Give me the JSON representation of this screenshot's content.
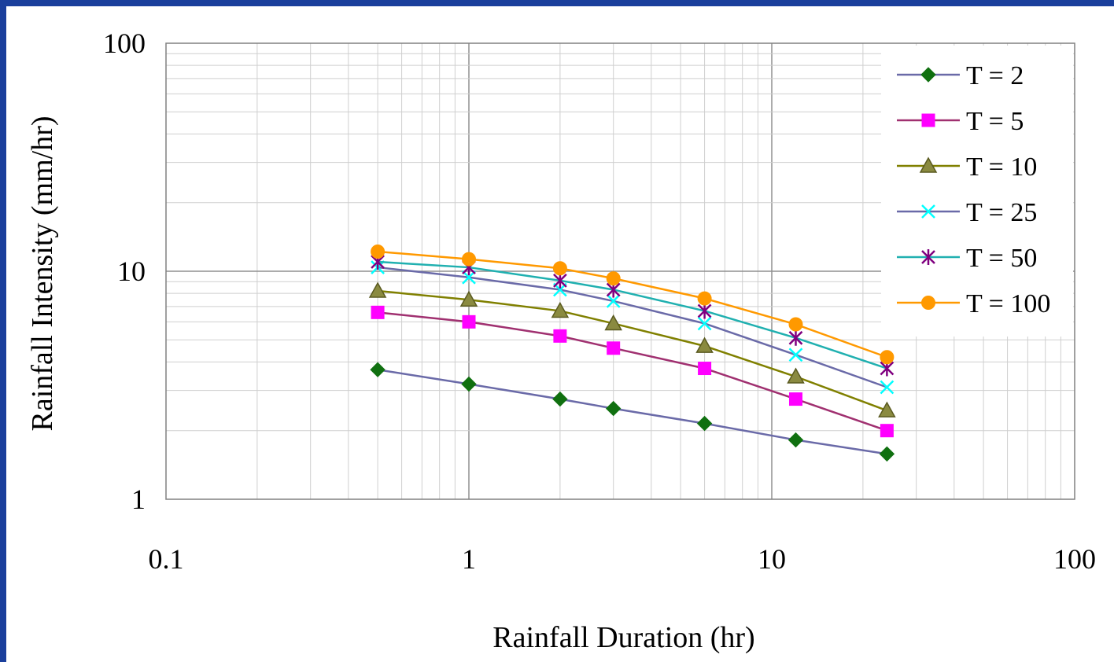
{
  "chart_data": {
    "type": "line",
    "title": "",
    "xlabel": "Rainfall Duration (hr)",
    "ylabel": "Rainfall Intensity (mm/hr)",
    "x_scale": "log",
    "y_scale": "log",
    "xlim": [
      0.1,
      100
    ],
    "ylim": [
      1,
      100
    ],
    "x_ticks": [
      "0.1",
      "1",
      "10",
      "100"
    ],
    "y_ticks": [
      "1",
      "10",
      "100"
    ],
    "grid": true,
    "legend_position": "top-right",
    "x": [
      0.5,
      1,
      2,
      3,
      6,
      12,
      24
    ],
    "series": [
      {
        "name": "T = 2",
        "line_color": "#6a6aa8",
        "marker": "diamond",
        "marker_color": "#107010",
        "values": [
          3.7,
          3.2,
          2.75,
          2.5,
          2.15,
          1.82,
          1.58
        ]
      },
      {
        "name": "T = 5",
        "line_color": "#a03070",
        "marker": "square",
        "marker_color": "#ff00ff",
        "values": [
          6.6,
          6.0,
          5.2,
          4.6,
          3.75,
          2.75,
          2.0
        ]
      },
      {
        "name": "T = 10",
        "line_color": "#808000",
        "marker": "triangle",
        "marker_color": "#8a8a40",
        "values": [
          8.2,
          7.5,
          6.7,
          5.9,
          4.7,
          3.45,
          2.45
        ]
      },
      {
        "name": "T = 25",
        "line_color": "#6a6aa8",
        "marker": "x",
        "marker_color": "#00ffff",
        "values": [
          10.4,
          9.4,
          8.3,
          7.4,
          5.9,
          4.3,
          3.1
        ]
      },
      {
        "name": "T = 50",
        "line_color": "#20b0b0",
        "marker": "star",
        "marker_color": "#800080",
        "values": [
          11.0,
          10.4,
          9.1,
          8.3,
          6.7,
          5.1,
          3.75
        ]
      },
      {
        "name": "T = 100",
        "line_color": "#ff9900",
        "marker": "circle",
        "marker_color": "#ff9900",
        "values": [
          12.2,
          11.3,
          10.3,
          9.3,
          7.6,
          5.85,
          4.2
        ]
      }
    ]
  }
}
